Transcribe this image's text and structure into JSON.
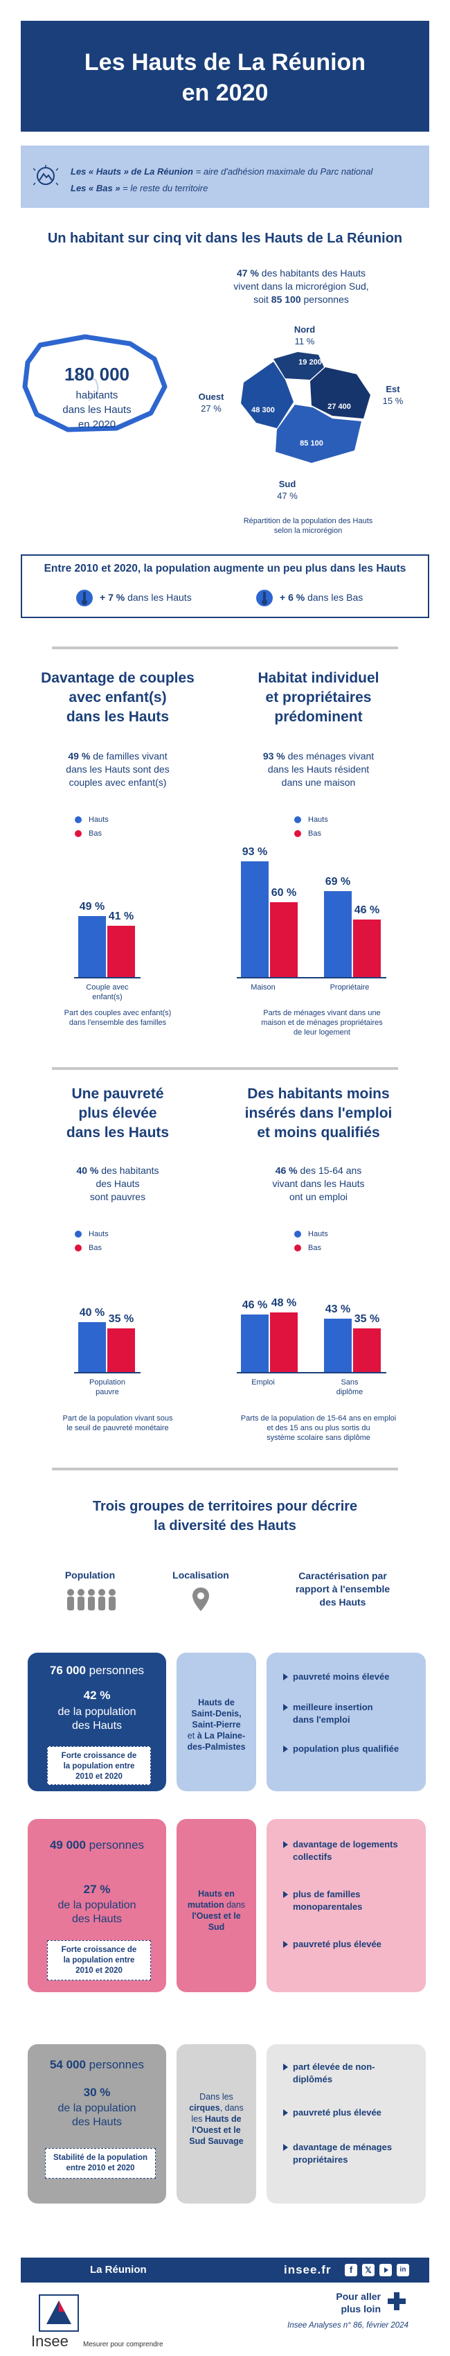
{
  "header": {
    "title_line1": "Les Hauts de La Réunion",
    "title_line2": "en 2020"
  },
  "definitions": {
    "hauts_term": "Les « Hauts » de La Réunion",
    "hauts_def": " = aire d'adhésion maximale du Parc national",
    "bas_term": "Les « Bas »",
    "bas_def": " = le reste du territoire"
  },
  "section1": {
    "title": "Un habitant sur cinq vit dans les Hauts de La Réunion",
    "big_number": "180 000",
    "big_caption_line1": "habitants",
    "big_caption_line2": "dans les Hauts",
    "big_caption_line3": "en 2020",
    "stat_pct": "47 %",
    "stat_line1": " des habitants des Hauts",
    "stat_line2": "vivent dans la microrégion Sud,",
    "stat_line3_prefix": "soit ",
    "stat_line3_value": "85 100",
    "stat_line3_suffix": " personnes",
    "map": {
      "nord_label": "Nord",
      "nord_pct": "11 %",
      "nord_value": "19 200",
      "ouest_label": "Ouest",
      "ouest_pct": "27 %",
      "ouest_value": "48 300",
      "est_label": "Est",
      "est_pct": "15 %",
      "est_value": "27 400",
      "sud_label": "Sud",
      "sud_pct": "47 %",
      "sud_value": "85 100"
    },
    "map_caption_line1": "Répartition de la population des Hauts",
    "map_caption_line2": "selon la microrégion"
  },
  "growth": {
    "title": "Entre 2010 et 2020, la population augmente un peu plus dans les Hauts",
    "hauts_value": "+ 7 %",
    "hauts_label": " dans les Hauts",
    "bas_value": "+ 6 %",
    "bas_label": " dans les Bas"
  },
  "legend": {
    "hauts": "Hauts",
    "bas": "Bas"
  },
  "colors": {
    "hauts": "#2e66cf",
    "bas": "#e0133f",
    "navy": "#1b3f7a"
  },
  "couples": {
    "title_line1": "Davantage de couples",
    "title_line2": "avec enfant(s)",
    "title_line3": "dans les Hauts",
    "pct": "49 %",
    "desc_line1": " de familles vivant",
    "desc_line2": "dans les Hauts sont des",
    "desc_line3": "couples avec enfant(s)",
    "cat_line1": "Couple avec",
    "cat_line2": "enfant(s)",
    "note_line1": "Part des couples avec enfant(s)",
    "note_line2": "dans l'ensemble des familles"
  },
  "habitat": {
    "title_line1": "Habitat individuel",
    "title_line2": "et propriétaires",
    "title_line3": "prédominent",
    "pct": "93 %",
    "desc_line1": " des ménages vivant",
    "desc_line2": "dans les Hauts résident",
    "desc_line3": "dans une maison",
    "cat1": "Maison",
    "cat2": "Propriétaire",
    "note_line1": "Parts de ménages vivant dans une",
    "note_line2": "maison et de ménages propriétaires",
    "note_line3": "de leur logement"
  },
  "pauvrete": {
    "title_line1": "Une pauvreté",
    "title_line2": "plus élevée",
    "title_line3": "dans les Hauts",
    "pct": "40 %",
    "desc_line1": " des habitants",
    "desc_line2": "des Hauts",
    "desc_line3": "sont pauvres",
    "cat_line1": "Population",
    "cat_line2": "pauvre",
    "note_line1": "Part de la population vivant sous",
    "note_line2": "le seuil de pauvreté monétaire"
  },
  "emploi": {
    "title_line1": "Des habitants moins",
    "title_line2": "insérés dans l'emploi",
    "title_line3": "et moins qualifiés",
    "pct": "46 %",
    "desc_line1": " des 15-64 ans",
    "desc_line2": "vivant dans les Hauts",
    "desc_line3": "ont un emploi",
    "cat1": "Emploi",
    "cat2_line1": "Sans",
    "cat2_line2": "diplôme",
    "note_line1": "Parts de la population de 15-64 ans en emploi",
    "note_line2": "et des 15 ans ou plus sortis du",
    "note_line3": "système scolaire sans diplôme"
  },
  "chart_data": [
    {
      "type": "bar",
      "title": "Part des couples avec enfant(s) dans l'ensemble des familles",
      "categories": [
        "Couple avec enfant(s)"
      ],
      "series": [
        {
          "name": "Hauts",
          "values": [
            49
          ]
        },
        {
          "name": "Bas",
          "values": [
            41
          ]
        }
      ],
      "value_labels": [
        [
          "49 %"
        ],
        [
          "41 %"
        ]
      ],
      "ylim": [
        0,
        100
      ]
    },
    {
      "type": "bar",
      "title": "Parts de ménages vivant dans une maison et de ménages propriétaires de leur logement",
      "categories": [
        "Maison",
        "Propriétaire"
      ],
      "series": [
        {
          "name": "Hauts",
          "values": [
            93,
            69
          ]
        },
        {
          "name": "Bas",
          "values": [
            60,
            46
          ]
        }
      ],
      "value_labels": [
        [
          "93 %",
          "69 %"
        ],
        [
          "60 %",
          "46 %"
        ]
      ],
      "ylim": [
        0,
        100
      ]
    },
    {
      "type": "bar",
      "title": "Part de la population vivant sous le seuil de pauvreté monétaire",
      "categories": [
        "Population pauvre"
      ],
      "series": [
        {
          "name": "Hauts",
          "values": [
            40
          ]
        },
        {
          "name": "Bas",
          "values": [
            35
          ]
        }
      ],
      "value_labels": [
        [
          "40 %"
        ],
        [
          "35 %"
        ]
      ],
      "ylim": [
        0,
        100
      ]
    },
    {
      "type": "bar",
      "title": "Parts de la population de 15-64 ans en emploi et des 15 ans ou plus sortis du système scolaire sans diplôme",
      "categories": [
        "Emploi",
        "Sans diplôme"
      ],
      "series": [
        {
          "name": "Hauts",
          "values": [
            46,
            43
          ]
        },
        {
          "name": "Bas",
          "values": [
            48,
            35
          ]
        }
      ],
      "value_labels": [
        [
          "46 %",
          "43 %"
        ],
        [
          "48 %",
          "35 %"
        ]
      ],
      "ylim": [
        0,
        100
      ]
    },
    {
      "type": "pie",
      "title": "Répartition de la population des Hauts selon la microrégion",
      "categories": [
        "Nord",
        "Ouest",
        "Est",
        "Sud"
      ],
      "values": [
        19200,
        48300,
        27400,
        85100
      ],
      "percents": [
        11,
        27,
        15,
        47
      ]
    }
  ],
  "groups": {
    "title_line1": "Trois groupes de territoires pour décrire",
    "title_line2": "la diversité des Hauts",
    "col_population": "Population",
    "col_localisation": "Localisation",
    "col_carac_line1": "Caractérisation par",
    "col_carac_line2": "rapport à l'ensemble",
    "col_carac_line3": "des Hauts",
    "g1": {
      "count": "76 000",
      "count_suffix": " personnes",
      "pct": "42 %",
      "pct_line1": "de la population",
      "pct_line2": "des Hauts",
      "box_line1": "Forte croissance de",
      "box_line2": "la population entre",
      "box_line3": "2010 et 2020",
      "loc_line1": "Hauts de",
      "loc_line2": "Saint-Denis,",
      "loc_line3": "Saint-Pierre",
      "loc_line4_pre": "et ",
      "loc_line4_bold": "à La Plaine-",
      "loc_line5": "des-Palmistes",
      "b1": "pauvreté moins élevée",
      "b2_line1": "meilleure insertion",
      "b2_line2": "dans l'emploi",
      "b3": "population plus qualifiée"
    },
    "g2": {
      "count": "49 000",
      "count_suffix": " personnes",
      "pct": "27 %",
      "pct_line1": "de la population",
      "pct_line2": "des Hauts",
      "box_line1": "Forte croissance de",
      "box_line2": "la population entre",
      "box_line3": "2010 et 2020",
      "loc_line1": "Hauts en",
      "loc_line2_bold": "mutation",
      "loc_line2_rest": " dans",
      "loc_line3": "l'Ouest et le",
      "loc_line4": "Sud",
      "b1_line1": "davantage de logements",
      "b1_line2": "collectifs",
      "b2_line1": "plus de familles",
      "b2_line2": "monoparentales",
      "b3": "pauvreté plus élevée"
    },
    "g3": {
      "count": "54 000",
      "count_suffix": " personnes",
      "pct": "30 %",
      "pct_line1": "de la population",
      "pct_line2": "des Hauts",
      "box_line1": "Stabilité de la population",
      "box_line2": "entre 2010 et 2020",
      "loc_line1": "Dans les",
      "loc_line2_bold": "cirques",
      "loc_line2_rest": ", dans",
      "loc_line3_pre": "les ",
      "loc_line3_bold": "Hauts de",
      "loc_line4": "l'Ouest et le",
      "loc_line5": "Sud Sauvage",
      "b1_line1": "part élevée de non-",
      "b1_line2": "diplômés",
      "b2": "pauvreté plus élevée",
      "b3_line1": "davantage de ménages",
      "b3_line2": "propriétaires"
    }
  },
  "footer": {
    "region": "La Réunion",
    "site": "insee.fr",
    "more_line1": "Pour aller",
    "more_line2": "plus loin",
    "publication": "Insee Analyses n° 86, février 2024",
    "logo_text": "Insee",
    "tagline": "Mesurer pour comprendre"
  }
}
